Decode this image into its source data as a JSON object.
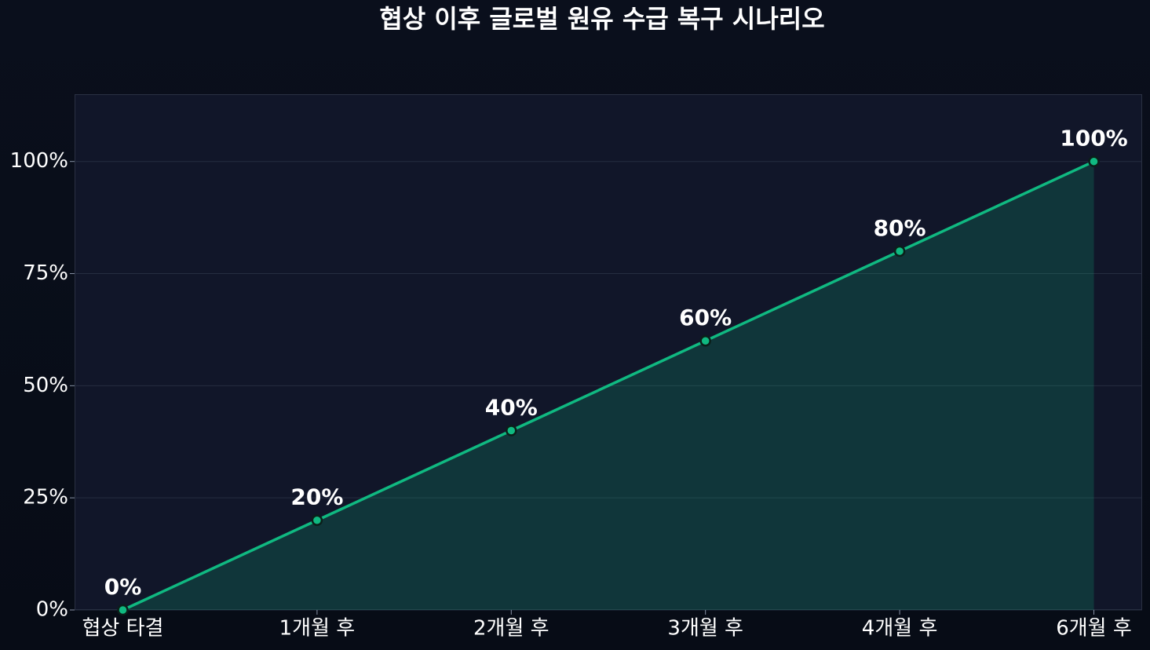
{
  "chart_data": {
    "type": "area",
    "title": "협상 이후 글로벌 원유 수급 복구 시나리오",
    "categories": [
      "협상 타결",
      "1개월 후",
      "2개월 후",
      "3개월 후",
      "4개월 후",
      "6개월 후"
    ],
    "values": [
      0,
      20,
      40,
      60,
      80,
      100
    ],
    "value_labels": [
      "0%",
      "20%",
      "40%",
      "60%",
      "80%",
      "100%"
    ],
    "color": "#10b981",
    "ylim": [
      0,
      115
    ],
    "yticks": [
      {
        "value": 0,
        "label": "0%"
      },
      {
        "value": 25,
        "label": "25%"
      },
      {
        "value": 50,
        "label": "50%"
      },
      {
        "value": 75,
        "label": "75%"
      },
      {
        "value": 100,
        "label": "100%"
      }
    ],
    "grid": true
  }
}
